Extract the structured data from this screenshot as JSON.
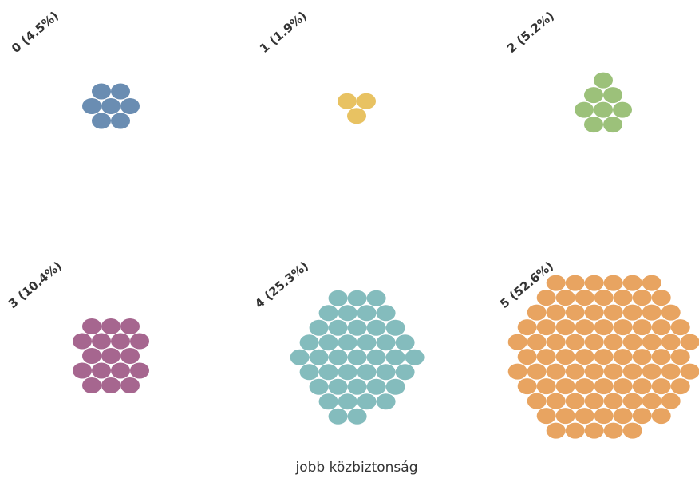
{
  "chart_data": {
    "type": "scatter",
    "subtype": "hexagonal unit-dot cluster per category",
    "xlabel": "jobb közbiztonság",
    "grid": false,
    "legend": "none",
    "panels": [
      {
        "category": "0",
        "label": "0 (4.5%)",
        "percent": 4.5,
        "dot_count": 7,
        "color": "#6a8db2"
      },
      {
        "category": "1",
        "label": "1 (1.9%)",
        "percent": 1.9,
        "dot_count": 3,
        "color": "#e8c262"
      },
      {
        "category": "2",
        "label": "2 (5.2%)",
        "percent": 5.2,
        "dot_count": 8,
        "color": "#9cc17a"
      },
      {
        "category": "3",
        "label": "3 (10.4%)",
        "percent": 10.4,
        "dot_count": 17,
        "color": "#a6668f"
      },
      {
        "category": "4",
        "label": "4 (25.3%)",
        "percent": 25.3,
        "dot_count": 42,
        "color": "#84bcbd"
      },
      {
        "category": "5",
        "label": "5 (52.6%)",
        "percent": 52.6,
        "dot_count": 88,
        "color": "#e8a461"
      }
    ]
  }
}
